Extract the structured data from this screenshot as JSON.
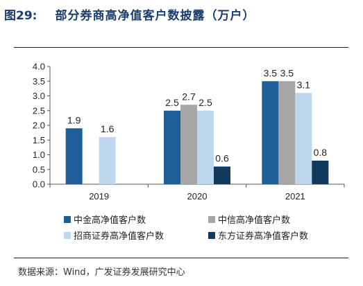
{
  "header": {
    "figure_number": "图29:",
    "title": "部分券商高净值客户数披露（万户）"
  },
  "source": "数据来源：Wind，广发证券发展研究中心",
  "chart_data": {
    "type": "bar",
    "categories": [
      "2019",
      "2020",
      "2021"
    ],
    "series": [
      {
        "name": "中金高净值客户数",
        "color": "#1f5f99",
        "values": [
          1.9,
          2.5,
          3.5
        ],
        "labels": [
          "1.9",
          "2.5",
          "3.5"
        ]
      },
      {
        "name": "中信高净值客户数",
        "color": "#a6a6a6",
        "values": [
          null,
          2.7,
          3.5
        ],
        "labels": [
          null,
          "2.7",
          "3.5"
        ]
      },
      {
        "name": "招商证券高净值客户数",
        "color": "#bdd7ee",
        "values": [
          1.6,
          2.5,
          3.1
        ],
        "labels": [
          "1.6",
          "2.5",
          "3.1"
        ]
      },
      {
        "name": "东方证券高净值客户数",
        "color": "#123a5e",
        "values": [
          null,
          0.6,
          0.8
        ],
        "labels": [
          null,
          "0.6",
          "0.8"
        ]
      }
    ],
    "y_ticks": [
      "0.0",
      "0.5",
      "1.0",
      "1.5",
      "2.0",
      "2.5",
      "3.0",
      "3.5",
      "4.0"
    ],
    "ylim": [
      0,
      4.0
    ],
    "legend_position": "bottom",
    "grid": false
  }
}
